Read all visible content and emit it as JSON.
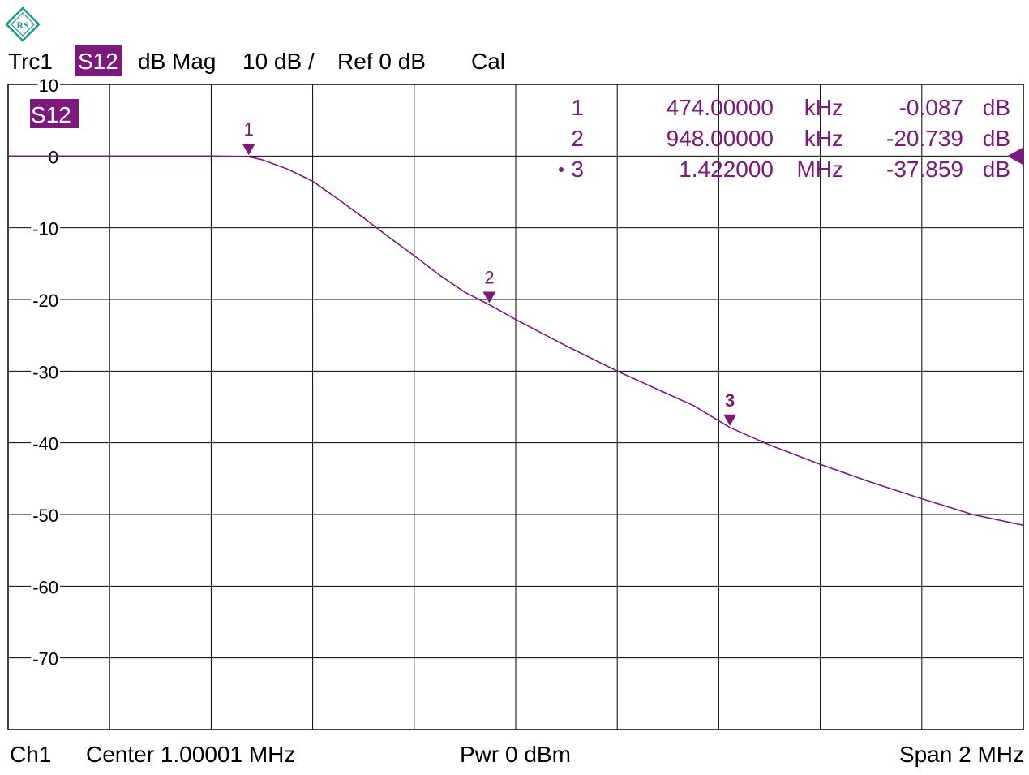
{
  "header": {
    "trace": "Trc1",
    "param": "S12",
    "format": "dB Mag",
    "scale": "10 dB /",
    "ref": "Ref 0 dB",
    "cal": "Cal"
  },
  "footer": {
    "channel": "Ch1",
    "center": "Center  1.00001 MHz",
    "power": "Pwr  0 dBm",
    "span": "Span  2 MHz"
  },
  "colors": {
    "trace": "#7b1a7b",
    "grid": "#000000",
    "logo": "#1f9a8a"
  },
  "chart_data": {
    "type": "line",
    "title": "",
    "trace_label": "S12",
    "xlabel": "",
    "ylabel": "",
    "x_unit": "MHz",
    "xlim": [
      1e-05,
      2.00001
    ],
    "ylim": [
      -80,
      10
    ],
    "grid": true,
    "y_ticks": [
      10,
      0,
      -10,
      -20,
      -30,
      -40,
      -50,
      -60,
      -70
    ],
    "y_tick_labels": [
      "10",
      "0",
      "-10",
      "-20",
      "-30",
      "-40",
      "-50",
      "-60",
      "-70"
    ],
    "reference_level": 0,
    "series": [
      {
        "x": [
          0.0,
          0.1,
          0.2,
          0.3,
          0.4,
          0.474,
          0.5,
          0.55,
          0.6,
          0.65,
          0.7,
          0.75,
          0.8,
          0.85,
          0.9,
          0.948,
          1.0,
          1.1,
          1.2,
          1.3,
          1.35,
          1.422,
          1.5,
          1.6,
          1.7,
          1.8,
          1.9,
          2.0
        ],
        "y": [
          0.0,
          0.0,
          0.0,
          0.0,
          0.0,
          -0.087,
          -0.5,
          -1.8,
          -3.5,
          -6.0,
          -8.6,
          -11.3,
          -13.9,
          -16.6,
          -19.0,
          -20.739,
          -22.8,
          -26.5,
          -30.0,
          -33.2,
          -34.8,
          -37.859,
          -40.3,
          -43.0,
          -45.5,
          -47.8,
          -50.0,
          -51.5
        ]
      }
    ],
    "markers": [
      {
        "label": "1",
        "x": 0.474,
        "y": -0.087,
        "freq": "474.00000",
        "unit": "kHz",
        "value": "-0.087",
        "vunit": "dB",
        "active": false
      },
      {
        "label": "2",
        "x": 0.948,
        "y": -20.739,
        "freq": "948.00000",
        "unit": "kHz",
        "value": "-20.739",
        "vunit": "dB",
        "active": false
      },
      {
        "label": "3",
        "x": 1.422,
        "y": -37.859,
        "freq": "1.422000",
        "unit": "MHz",
        "value": "-37.859",
        "vunit": "dB",
        "active": true
      }
    ]
  }
}
